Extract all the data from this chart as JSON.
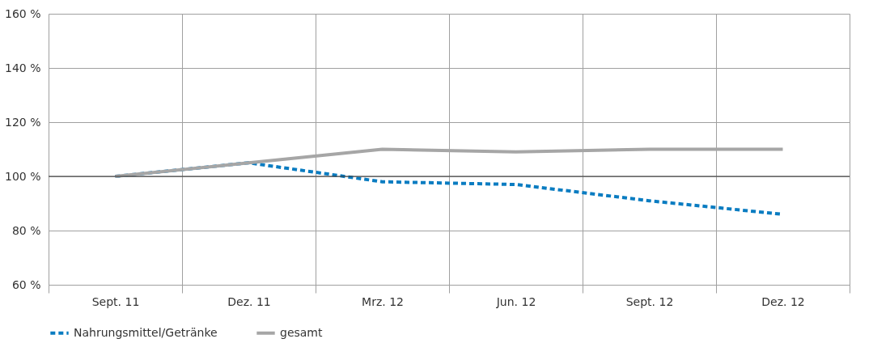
{
  "chart_data": {
    "type": "line",
    "categories": [
      "Sept. 11",
      "Dez. 11",
      "Mrz. 12",
      "Jun. 12",
      "Sept. 12",
      "Dez. 12"
    ],
    "series": [
      {
        "name": "Nahrungsmittel/Getränke",
        "color": "#0a7cc1",
        "line_style": "dashed",
        "values": [
          100,
          105,
          98,
          97,
          91,
          86
        ]
      },
      {
        "name": "gesamt",
        "color": "#a6a6a6",
        "line_style": "solid",
        "values": [
          100,
          105,
          110,
          109,
          110,
          110
        ]
      }
    ],
    "ylim": [
      60,
      160
    ],
    "yticks": [
      {
        "value": 60,
        "label": "60 %"
      },
      {
        "value": 80,
        "label": "80 %"
      },
      {
        "value": 100,
        "label": "100 %"
      },
      {
        "value": 120,
        "label": "120 %"
      },
      {
        "value": 140,
        "label": "140 %"
      },
      {
        "value": 160,
        "label": "160 %"
      }
    ],
    "ref_lines": [
      {
        "axis": "y",
        "value": 100,
        "label": null,
        "color": "#333333"
      }
    ],
    "grid": true,
    "legend": "bottom left",
    "marker": "none"
  }
}
